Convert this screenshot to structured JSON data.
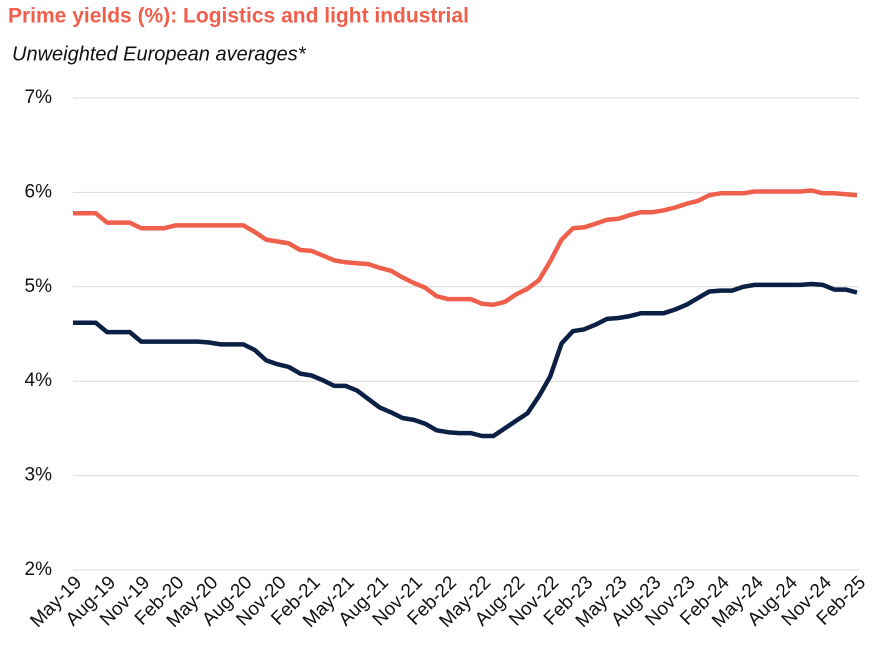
{
  "chart_data": {
    "type": "line",
    "title": "Prime yields (%): Logistics and light industrial",
    "subtitle": "Unweighted European averages*",
    "categories": [
      "May-19",
      null,
      null,
      "Aug-19",
      null,
      null,
      "Nov-19",
      null,
      null,
      "Feb-20",
      null,
      null,
      "May-20",
      null,
      null,
      "Aug-20",
      null,
      null,
      "Nov-20",
      null,
      null,
      "Feb-21",
      null,
      null,
      "May-21",
      null,
      null,
      "Aug-21",
      null,
      null,
      "Nov-21",
      null,
      null,
      "Feb-22",
      null,
      null,
      "May-22",
      null,
      null,
      "Aug-22",
      null,
      null,
      "Nov-22",
      null,
      null,
      "Feb-23",
      null,
      null,
      "May-23",
      null,
      null,
      "Aug-23",
      null,
      null,
      "Nov-23",
      null,
      null,
      "Feb-24",
      null,
      null,
      "May-24",
      null,
      null,
      "Aug-24",
      null,
      null,
      "Nov-24",
      null,
      null,
      "Feb-25"
    ],
    "series": [
      {
        "color": "#ee5f4c",
        "values": [
          5.78,
          5.78,
          5.78,
          5.68,
          5.68,
          5.68,
          5.62,
          5.62,
          5.62,
          5.65,
          5.65,
          5.65,
          5.65,
          5.65,
          5.65,
          5.65,
          5.58,
          5.5,
          5.48,
          5.46,
          5.39,
          5.38,
          5.33,
          5.28,
          5.26,
          5.25,
          5.24,
          5.2,
          5.17,
          5.1,
          5.04,
          4.99,
          4.9,
          4.87,
          4.87,
          4.87,
          4.82,
          4.81,
          4.84,
          4.92,
          4.98,
          5.07,
          5.27,
          5.5,
          5.62,
          5.63,
          5.67,
          5.71,
          5.72,
          5.76,
          5.79,
          5.79,
          5.81,
          5.84,
          5.88,
          5.91,
          5.97,
          5.99,
          5.99,
          5.99,
          6.01,
          6.01,
          6.01,
          6.01,
          6.01,
          6.02,
          5.99,
          5.99,
          5.98,
          5.97
        ]
      },
      {
        "color": "#0c1f44",
        "values": [
          4.62,
          4.62,
          4.62,
          4.52,
          4.52,
          4.52,
          4.42,
          4.42,
          4.42,
          4.42,
          4.42,
          4.42,
          4.41,
          4.39,
          4.39,
          4.39,
          4.33,
          4.22,
          4.18,
          4.15,
          4.08,
          4.06,
          4.01,
          3.95,
          3.95,
          3.9,
          3.81,
          3.72,
          3.67,
          3.61,
          3.59,
          3.55,
          3.48,
          3.46,
          3.45,
          3.45,
          3.42,
          3.42,
          3.5,
          3.58,
          3.66,
          3.84,
          4.05,
          4.4,
          4.53,
          4.55,
          4.6,
          4.66,
          4.67,
          4.69,
          4.72,
          4.72,
          4.72,
          4.76,
          4.81,
          4.88,
          4.95,
          4.96,
          4.96,
          5.0,
          5.02,
          5.02,
          5.02,
          5.02,
          5.02,
          5.03,
          5.02,
          4.97,
          4.97,
          4.94
        ]
      }
    ],
    "ylim": [
      2,
      7
    ],
    "yticks": [
      {
        "value": 2,
        "label": "2%"
      },
      {
        "value": 3,
        "label": "3%"
      },
      {
        "value": 4,
        "label": "4%"
      },
      {
        "value": 5,
        "label": "5%"
      },
      {
        "value": 6,
        "label": "6%"
      },
      {
        "value": 7,
        "label": "7%"
      }
    ],
    "grid": true
  }
}
